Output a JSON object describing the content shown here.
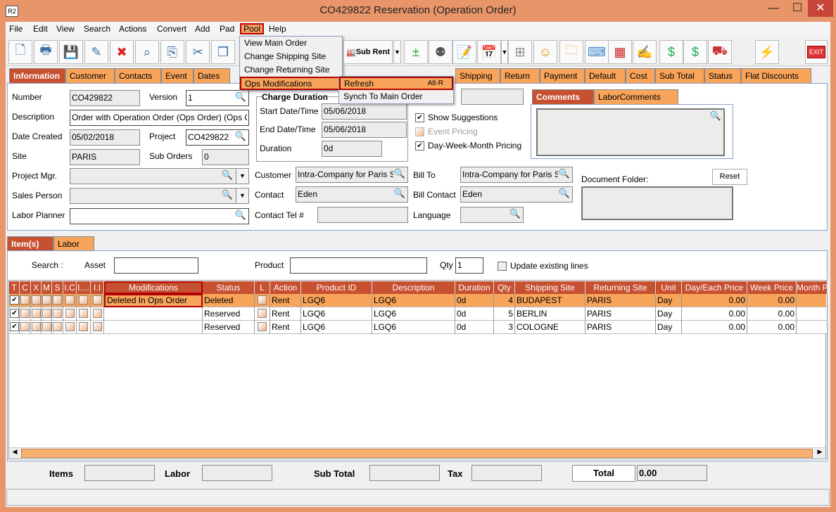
{
  "window": {
    "title": "CO429822 Reservation (Operation Order)",
    "logo": "R2",
    "min": "—",
    "max": "☐",
    "close": "✕"
  },
  "menubar": [
    "File",
    "Edit",
    "View",
    "Search",
    "Actions",
    "Convert",
    "Add",
    "Pad",
    "Pool",
    "Help"
  ],
  "pool_menu": {
    "items": [
      "View Main Order",
      "Change Shipping Site",
      "Change Returning Site",
      "Ops Modifications"
    ],
    "submenu": [
      {
        "label": "Refresh",
        "shortcut": "Alt-R"
      },
      {
        "label": "Synch To Main Order",
        "shortcut": ""
      }
    ]
  },
  "toolbar": {
    "subrent_label": "Sub Rent",
    "exit_label": "EXIT"
  },
  "tabs": [
    "Information",
    "Customer",
    "Contacts",
    "Event",
    "Dates",
    "Shipping",
    "Return",
    "Payment",
    "Default",
    "Cost",
    "Sub Total",
    "Status",
    "Flat Discounts"
  ],
  "info": {
    "number_label": "Number",
    "number": "CO429822",
    "version_label": "Version",
    "version": "1",
    "description_label": "Description",
    "description": "Order with Operation Order (Ops Order) (Ops Order)",
    "date_created_label": "Date Created",
    "date_created": "05/02/2018",
    "project_label": "Project",
    "project": "CO429822",
    "site_label": "Site",
    "site": "PARIS",
    "sub_orders_label": "Sub Orders",
    "sub_orders": "0",
    "project_mgr_label": "Project Mgr.",
    "project_mgr": "",
    "sales_person_label": "Sales Person",
    "sales_person": "",
    "labor_planner_label": "Labor Planner",
    "labor_planner": "",
    "charge_duration_label": "Charge Duration",
    "start_label": "Start Date/Time",
    "start": "05/06/2018",
    "end_label": "End Date/Time",
    "end": "05/06/2018",
    "duration_label": "Duration",
    "duration": "0d",
    "show_suggestions": "Show Suggestions",
    "event_pricing": "Event Pricing",
    "dwm_pricing": "Day-Week-Month Pricing",
    "customer_label": "Customer",
    "customer": "Intra-Company for Paris Site",
    "contact_label": "Contact",
    "contact": "Eden",
    "contact_tel_label": "Contact Tel #",
    "contact_tel": "",
    "bill_to_label": "Bill To",
    "bill_to": "Intra-Company for Paris Site",
    "bill_contact_label": "Bill Contact",
    "bill_contact": "Eden",
    "language_label": "Language",
    "language": "",
    "comments_tabs": [
      "Comments",
      "LaborComments"
    ],
    "document_folder_label": "Document Folder:",
    "reset_label": "Reset"
  },
  "items_tabs": [
    "Item(s)",
    "Labor"
  ],
  "search": {
    "search_label": "Search :",
    "asset_label": "Asset",
    "product_label": "Product",
    "qty_label": "Qty",
    "qty": "1",
    "update_label": "Update existing lines"
  },
  "grid": {
    "columns": [
      "T",
      "C",
      "X",
      "M",
      "S",
      "I.C",
      "I....",
      "I.I",
      "Modifications",
      "Status",
      "L",
      "Action",
      "Product ID",
      "Description",
      "Duration",
      "Qty",
      "Shipping Site",
      "Returning Site",
      "Unit",
      "Day/Each Price",
      "Week Price",
      "Month P"
    ],
    "rows": [
      {
        "t": true,
        "modifications": "Deleted In Ops Order",
        "status": "Deleted",
        "action": "Rent",
        "product_id": "LGQ6",
        "description": "LGQ6",
        "duration": "0d",
        "qty": "4",
        "shipping_site": "BUDAPEST",
        "returning_site": "PARIS",
        "unit": "Day",
        "day_price": "0.00",
        "week_price": "0.00",
        "selected": true
      },
      {
        "t": true,
        "modifications": "",
        "status": "Reserved",
        "action": "Rent",
        "product_id": "LGQ6",
        "description": "LGQ6",
        "duration": "0d",
        "qty": "5",
        "shipping_site": "BERLIN",
        "returning_site": "PARIS",
        "unit": "Day",
        "day_price": "0.00",
        "week_price": "0.00",
        "selected": false
      },
      {
        "t": true,
        "modifications": "",
        "status": "Reserved",
        "action": "Rent",
        "product_id": "LGQ6",
        "description": "LGQ6",
        "duration": "0d",
        "qty": "3",
        "shipping_site": "COLOGNE",
        "returning_site": "PARIS",
        "unit": "Day",
        "day_price": "0.00",
        "week_price": "0.00",
        "selected": false
      }
    ]
  },
  "totals": {
    "items_label": "Items",
    "labor_label": "Labor",
    "sub_total_label": "Sub Total",
    "tax_label": "Tax",
    "total_label": "Total",
    "total": "0.00"
  },
  "colors": {
    "frame": "#e9956a",
    "accent": "#f8a45a",
    "active_tab": "#c65030",
    "highlight_border": "#c00000"
  }
}
